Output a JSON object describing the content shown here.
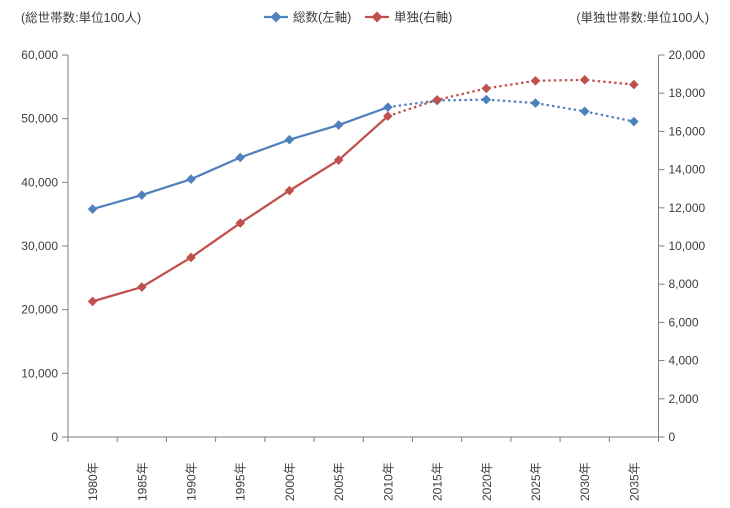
{
  "header": {
    "left_axis_caption": "(総世帯数:単位100人)",
    "right_axis_caption": "(単独世帯数:単位100人)"
  },
  "legend": [
    {
      "label": "総数(左軸)",
      "color": "#4f81bd",
      "marker": "diamond"
    },
    {
      "label": "単独(右軸)",
      "color": "#c0504d",
      "marker": "diamond"
    }
  ],
  "chart_data": {
    "type": "line",
    "title": "",
    "categories": [
      "1980年",
      "1985年",
      "1990年",
      "1995年",
      "2000年",
      "2005年",
      "2010年",
      "2015年",
      "2020年",
      "2025年",
      "2030年",
      "2035年"
    ],
    "series": [
      {
        "name": "総数(左軸)",
        "axis": "left",
        "color": "#4f81bd",
        "marker": "diamond",
        "values": [
          35800,
          38000,
          40500,
          43900,
          46700,
          49000,
          51800,
          52850,
          53000,
          52450,
          51150,
          49550
        ]
      },
      {
        "name": "単独(右軸)",
        "axis": "right",
        "color": "#c0504d",
        "marker": "diamond",
        "values": [
          7100,
          7850,
          9400,
          11200,
          12900,
          14500,
          16800,
          17650,
          18250,
          18650,
          18700,
          18450
        ]
      }
    ],
    "left_axis": {
      "title": "(総世帯数:単位100人)",
      "min": 0,
      "max": 60000,
      "step": 10000
    },
    "right_axis": {
      "title": "(単独世帯数:単位100人)",
      "min": 0,
      "max": 20000,
      "step": 2000
    },
    "projection_start_category": "2010年",
    "line_style": "solid through 2010年, dotted afterwards (projection)",
    "grid": false,
    "legend_position": "top-center"
  }
}
